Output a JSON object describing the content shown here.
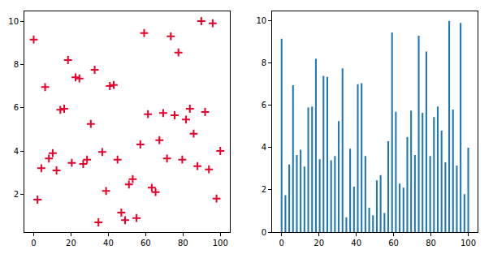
{
  "chart_data": [
    {
      "type": "scatter",
      "marker": "plus",
      "color": "#e8002a",
      "grid": false,
      "x": [
        0,
        2.04,
        4.08,
        6.12,
        8.16,
        10.2,
        12.24,
        14.29,
        16.33,
        18.37,
        20.41,
        22.45,
        24.49,
        26.53,
        28.57,
        30.61,
        32.65,
        34.69,
        36.73,
        38.78,
        40.82,
        42.86,
        44.9,
        46.94,
        48.98,
        51.02,
        53.06,
        55.1,
        57.14,
        59.18,
        61.22,
        63.27,
        65.31,
        67.35,
        69.39,
        71.43,
        73.47,
        75.51,
        77.55,
        79.59,
        81.63,
        83.67,
        85.71,
        87.76,
        89.8,
        91.84,
        93.88,
        95.92,
        97.96,
        100
      ],
      "values": [
        9.15,
        1.75,
        3.2,
        6.95,
        3.65,
        3.9,
        3.1,
        5.9,
        5.95,
        8.2,
        3.45,
        7.4,
        7.35,
        3.4,
        3.6,
        5.25,
        7.75,
        0.7,
        3.95,
        2.15,
        7.0,
        7.05,
        3.6,
        1.15,
        0.8,
        2.45,
        2.7,
        0.9,
        4.3,
        9.45,
        5.7,
        2.3,
        2.1,
        4.5,
        5.75,
        3.65,
        9.3,
        5.65,
        8.55,
        3.6,
        5.45,
        5.95,
        4.8,
        3.3,
        10.0,
        5.8,
        3.15,
        9.9,
        1.8,
        4.0
      ],
      "xlim": [
        -5,
        105
      ],
      "xticks": [
        0,
        20,
        40,
        60,
        80,
        100
      ],
      "ylim": [
        0.25,
        10.45
      ],
      "yticks": [
        2,
        4,
        6,
        8,
        10
      ]
    },
    {
      "type": "bar",
      "color": "#1f77b4",
      "grid": false,
      "x": [
        0,
        2.04,
        4.08,
        6.12,
        8.16,
        10.2,
        12.24,
        14.29,
        16.33,
        18.37,
        20.41,
        22.45,
        24.49,
        26.53,
        28.57,
        30.61,
        32.65,
        34.69,
        36.73,
        38.78,
        40.82,
        42.86,
        44.9,
        46.94,
        48.98,
        51.02,
        53.06,
        55.1,
        57.14,
        59.18,
        61.22,
        63.27,
        65.31,
        67.35,
        69.39,
        71.43,
        73.47,
        75.51,
        77.55,
        79.59,
        81.63,
        83.67,
        85.71,
        87.76,
        89.8,
        91.84,
        93.88,
        95.92,
        97.96,
        100
      ],
      "values": [
        9.15,
        1.75,
        3.2,
        6.95,
        3.65,
        3.9,
        3.1,
        5.9,
        5.95,
        8.2,
        3.45,
        7.4,
        7.35,
        3.4,
        3.6,
        5.25,
        7.75,
        0.7,
        3.95,
        2.15,
        7.0,
        7.05,
        3.6,
        1.15,
        0.8,
        2.45,
        2.7,
        0.9,
        4.3,
        9.45,
        5.7,
        2.3,
        2.1,
        4.5,
        5.75,
        3.65,
        9.3,
        5.65,
        8.55,
        3.6,
        5.45,
        5.95,
        4.8,
        3.3,
        10.0,
        5.8,
        3.15,
        9.9,
        1.8,
        4.0
      ],
      "xlim": [
        -5,
        105
      ],
      "xticks": [
        0,
        20,
        40,
        60,
        80,
        100
      ],
      "ylim": [
        0,
        10.45
      ],
      "yticks": [
        0,
        2,
        4,
        6,
        8,
        10
      ]
    }
  ]
}
